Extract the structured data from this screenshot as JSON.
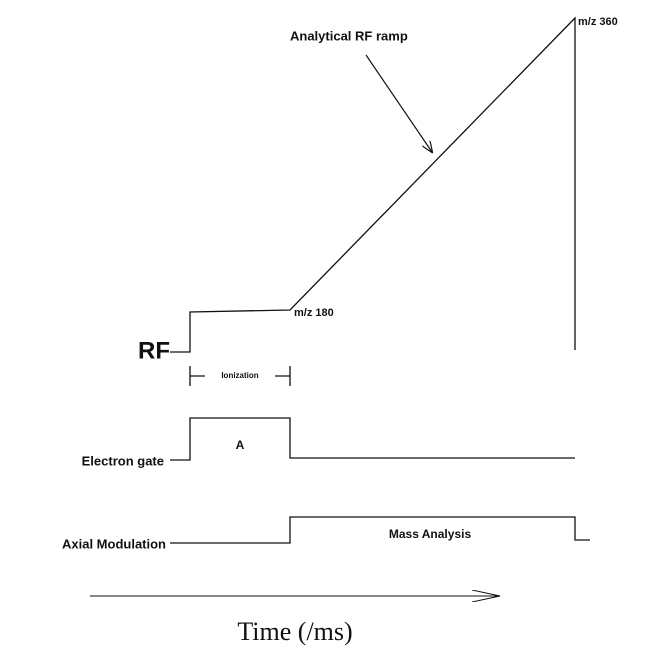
{
  "annotations": {
    "ramp_label": "Analytical RF ramp",
    "mz_high": "m/z 360",
    "mz_low": "m/z 180",
    "ionization": "Ionization",
    "gate_region": "A",
    "mass_analysis": "Mass Analysis"
  },
  "signals": {
    "rf": "RF",
    "electron_gate": "Electron gate",
    "axial_modulation": "Axial Modulation"
  },
  "time_axis": {
    "label": "Time (/ms)"
  }
}
